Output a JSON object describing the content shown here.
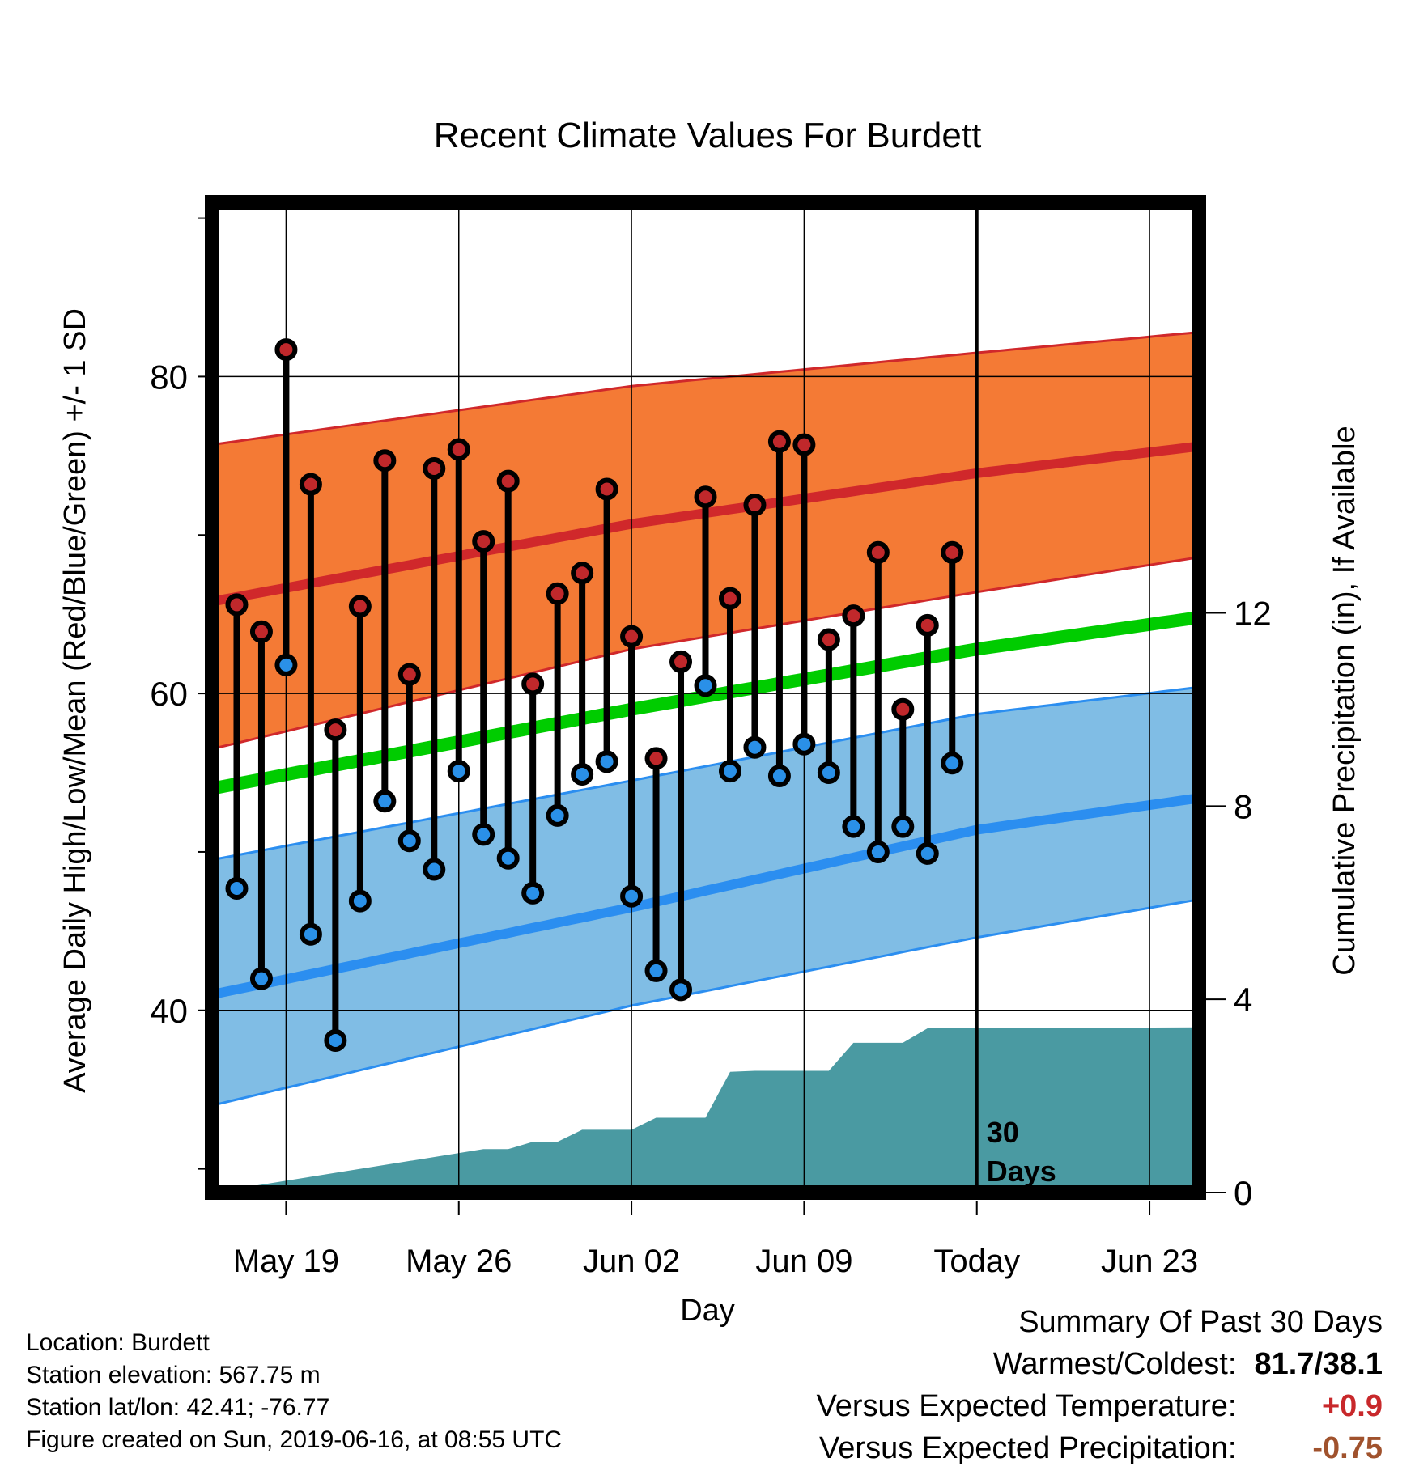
{
  "chart_data": {
    "type": "line",
    "title": "Recent Climate Values For Burdett",
    "xlabel": "Day",
    "ylabel": "Average Daily High/Low/Mean (Red/Blue/Green) +/- 1 SD",
    "y2label": "Cumulative Precipitation (in), If Available",
    "ylim": [
      28.5,
      91
    ],
    "y2lim": [
      0,
      20.5
    ],
    "yticks": [
      "40",
      "60",
      "80"
    ],
    "y2ticks": [
      "0",
      "4",
      "8",
      "12"
    ],
    "xticks": [
      "May 19",
      "May 26",
      "Jun 02",
      "Jun 09",
      "Today",
      "Jun 23"
    ],
    "today_label": "30\nDays",
    "grid": true,
    "days": [
      "May 17",
      "May 18",
      "May 19",
      "May 20",
      "May 21",
      "May 22",
      "May 23",
      "May 24",
      "May 25",
      "May 26",
      "May 27",
      "May 28",
      "May 29",
      "May 30",
      "May 31",
      "Jun 01",
      "Jun 02",
      "Jun 03",
      "Jun 04",
      "Jun 05",
      "Jun 06",
      "Jun 07",
      "Jun 08",
      "Jun 09",
      "Jun 10",
      "Jun 11",
      "Jun 12",
      "Jun 13",
      "Jun 14",
      "Jun 15"
    ],
    "series": [
      {
        "name": "High",
        "values": [
          65.6,
          63.9,
          81.7,
          73.2,
          57.7,
          65.5,
          74.7,
          61.2,
          74.2,
          75.4,
          69.6,
          73.4,
          60.6,
          66.3,
          67.6,
          72.9,
          63.6,
          55.9,
          62.0,
          72.4,
          66.0,
          71.9,
          75.9,
          75.7,
          63.4,
          64.9,
          68.9,
          59.0,
          64.3,
          68.9
        ]
      },
      {
        "name": "Low",
        "values": [
          47.7,
          42.0,
          61.8,
          44.8,
          38.1,
          46.9,
          53.2,
          50.7,
          48.9,
          55.1,
          51.1,
          49.6,
          47.4,
          52.3,
          54.9,
          55.7,
          47.2,
          42.5,
          41.3,
          60.5,
          55.1,
          56.6,
          54.8,
          56.8,
          55.0,
          51.6,
          50.0,
          51.6,
          49.9,
          55.6
        ]
      }
    ],
    "normals": {
      "days": [
        "May 16",
        "Jun 02",
        "Jun 16",
        "Jun 25"
      ],
      "high_mean": [
        65.8,
        70.7,
        73.9,
        75.6
      ],
      "high_sd_upper": [
        75.7,
        79.4,
        81.5,
        82.8
      ],
      "high_sd_lower": [
        56.5,
        62.8,
        66.4,
        68.6
      ],
      "mean": [
        54.0,
        59.0,
        62.8,
        64.8
      ],
      "low_mean": [
        41.0,
        46.5,
        51.4,
        53.4
      ],
      "low_sd_upper": [
        49.5,
        54.5,
        58.7,
        60.4
      ],
      "low_sd_lower": [
        34.0,
        40.3,
        44.6,
        47.0
      ]
    },
    "precip_cumulative": {
      "days": [
        "May 16",
        "May 27",
        "May 28",
        "May 29",
        "May 30",
        "May 31",
        "Jun 01",
        "Jun 02",
        "Jun 03",
        "Jun 04",
        "Jun 05",
        "Jun 06",
        "Jun 07",
        "Jun 08",
        "Jun 09",
        "Jun 10",
        "Jun 11",
        "Jun 12",
        "Jun 13",
        "Jun 14",
        "Jun 15",
        "Jun 25"
      ],
      "values": [
        0,
        0.9,
        0.9,
        1.05,
        1.05,
        1.3,
        1.3,
        1.3,
        1.55,
        1.55,
        1.55,
        2.5,
        2.52,
        2.52,
        2.52,
        2.52,
        3.1,
        3.1,
        3.1,
        3.4,
        3.4,
        3.42
      ]
    },
    "colors": {
      "high_band": "#f47a35",
      "high_line": "#d0282b",
      "low_band": "#80bde5",
      "low_line": "#2b8ef0",
      "mean_line": "#00cc00",
      "precip": "#4a9aa2",
      "high_marker": "#c0282b",
      "low_marker": "#2a90e8"
    }
  },
  "info": {
    "location": "Location: Burdett",
    "elevation": "Station elevation: 567.75 m",
    "latlon": "Station lat/lon: 42.41; -76.77",
    "created": "Figure created on Sun, 2019-06-16, at 08:55 UTC"
  },
  "summary": {
    "title": "Summary Of Past 30 Days",
    "warm_cold_label": "Warmest/Coldest:",
    "warm_cold_value": "81.7/38.1",
    "temp_label": "Versus Expected Temperature:",
    "temp_value": "+0.9",
    "temp_color": "#c8282b",
    "precip_label": "Versus Expected Precipitation:",
    "precip_value": "-0.75",
    "precip_color": "#a0522d"
  }
}
